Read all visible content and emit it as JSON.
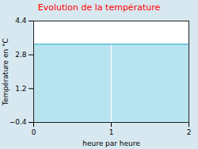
{
  "chart_data": {
    "type": "line",
    "title": "Evolution de la température",
    "xlabel": "heure par heure",
    "ylabel": "Température en °C",
    "x": [
      0,
      2
    ],
    "values": [
      3.3,
      3.3
    ],
    "color": "#5bbdd4",
    "xlim": [
      0,
      2
    ],
    "ylim": [
      -0.4,
      4.4
    ],
    "xticks": [
      0,
      1,
      2
    ],
    "yticks": [
      -0.4,
      1.2,
      2.8,
      4.4
    ],
    "grid": "x"
  }
}
